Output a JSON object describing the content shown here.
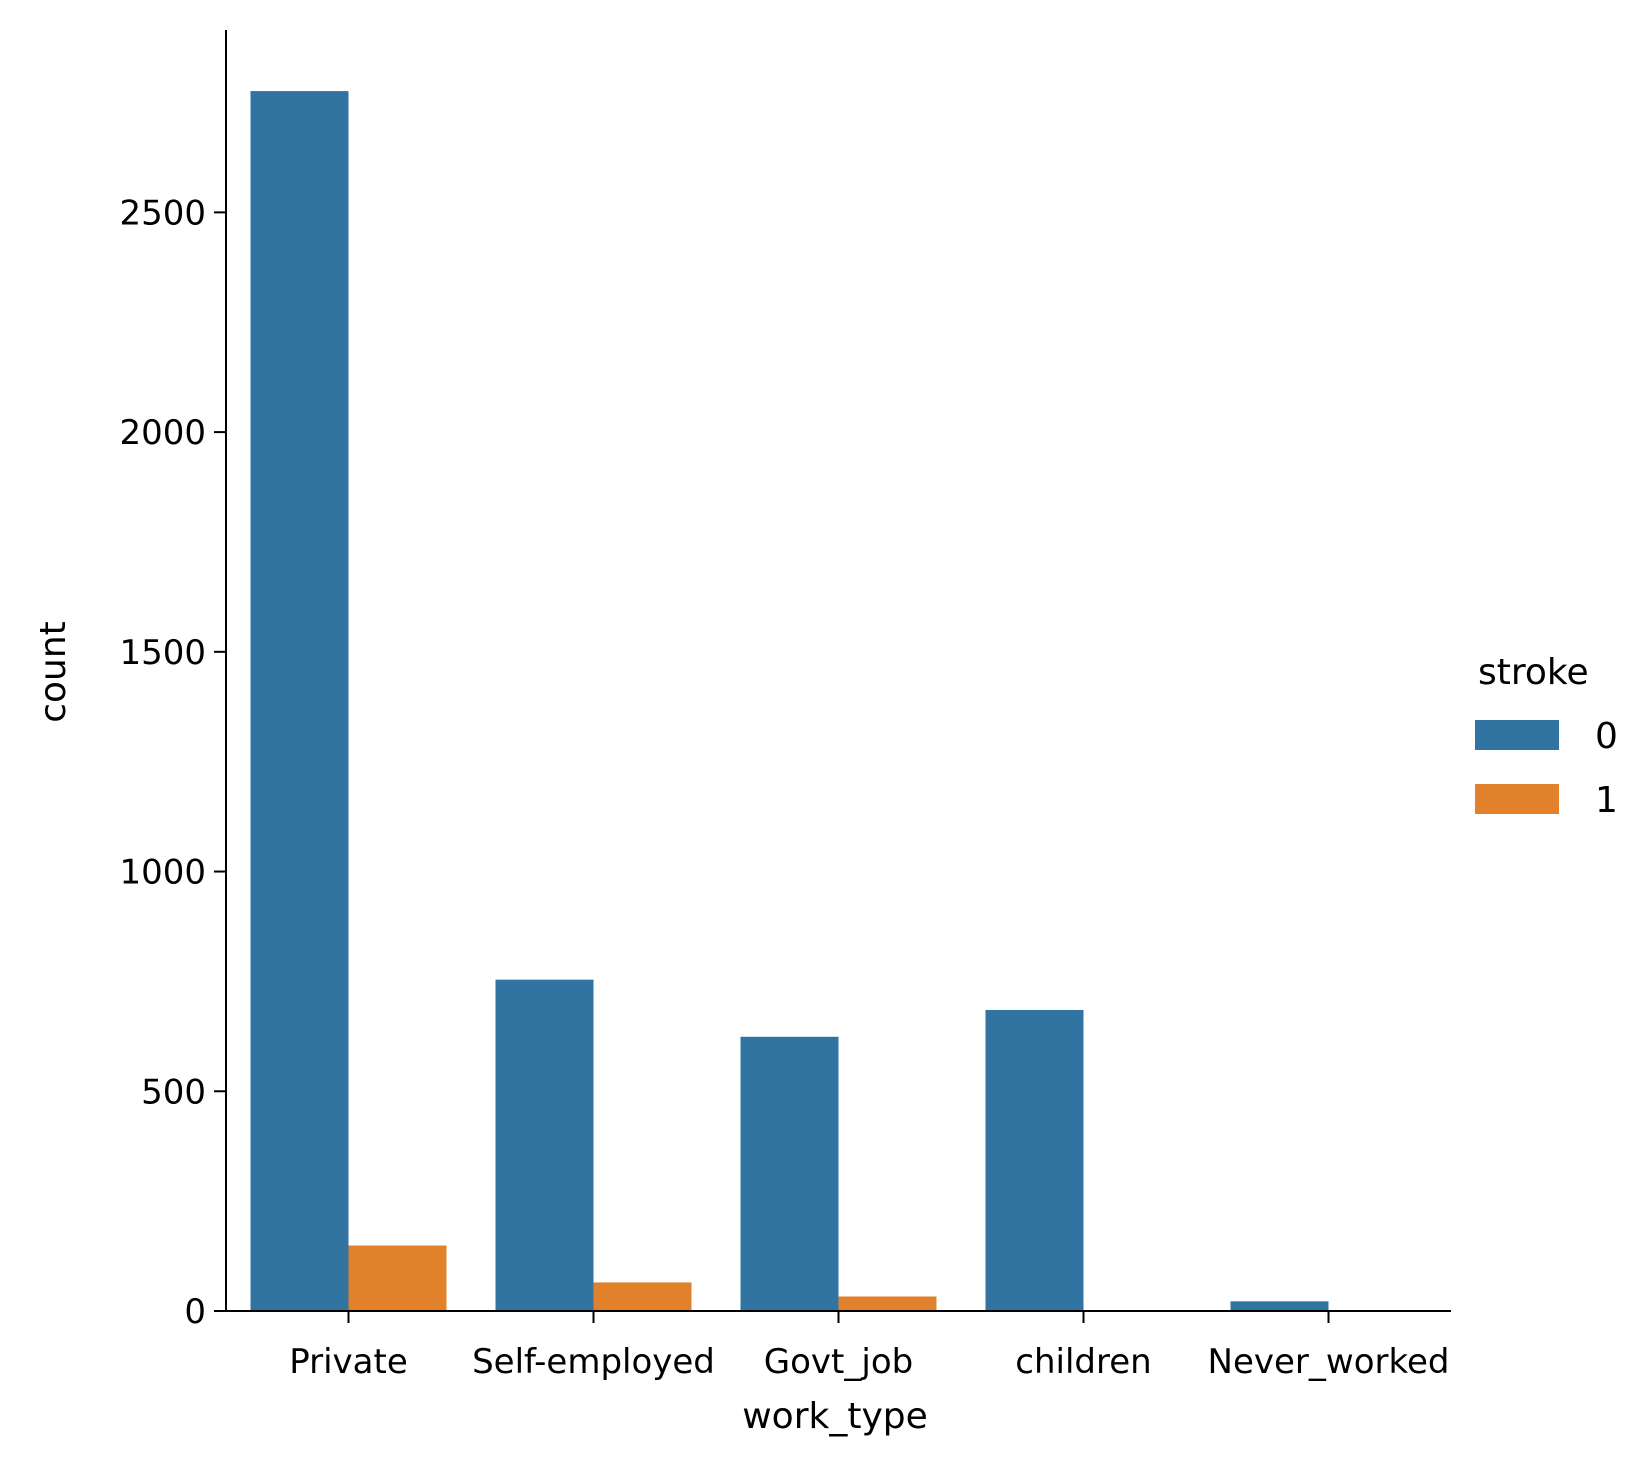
{
  "chart_data": {
    "type": "bar",
    "title": "",
    "xlabel": "work_type",
    "ylabel": "count",
    "categories": [
      "Private",
      "Self-employed",
      "Govt_job",
      "children",
      "Never_worked"
    ],
    "series": [
      {
        "name": "0",
        "color": "#3274a1",
        "values": [
          2776,
          754,
          624,
          685,
          22
        ]
      },
      {
        "name": "1",
        "color": "#e1812c",
        "values": [
          149,
          65,
          33,
          2,
          0
        ]
      }
    ],
    "yticks": [
      0,
      500,
      1000,
      1500,
      2000,
      2500
    ],
    "ylim": [
      0,
      2915
    ],
    "grid": false,
    "legend": {
      "title": "stroke",
      "placement": "right"
    }
  }
}
